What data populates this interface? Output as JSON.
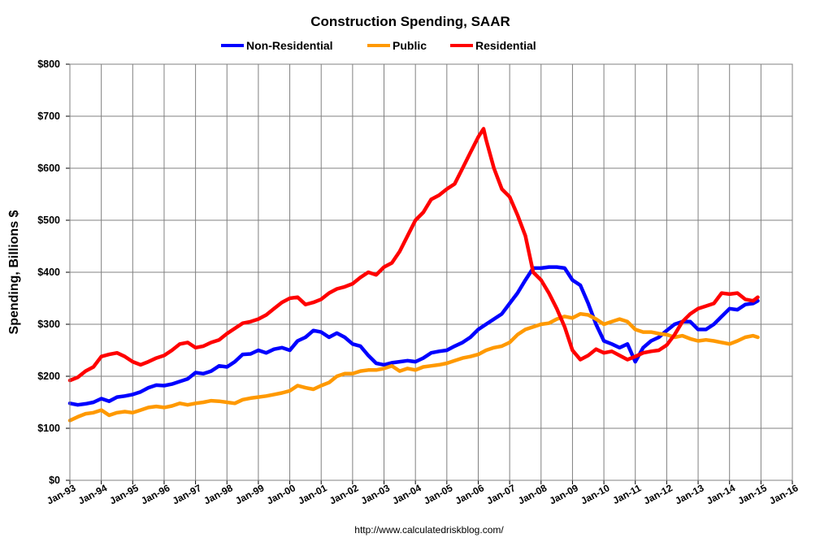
{
  "chart_data": {
    "type": "line",
    "title": "Construction Spending, SAAR",
    "ylabel": "Spending, Billions $",
    "source": "http://www.calculatedriskblog.com/",
    "ylim": [
      0,
      800
    ],
    "xlim": [
      1993,
      2016
    ],
    "grid": true,
    "legend_position": "top-center",
    "yticks": [
      0,
      100,
      200,
      300,
      400,
      500,
      600,
      700,
      800
    ],
    "ytick_labels": [
      "$0",
      "$100",
      "$200",
      "$300",
      "$400",
      "$500",
      "$600",
      "$700",
      "$800"
    ],
    "xticks": [
      1993,
      1994,
      1995,
      1996,
      1997,
      1998,
      1999,
      2000,
      2001,
      2002,
      2003,
      2004,
      2005,
      2006,
      2007,
      2008,
      2009,
      2010,
      2011,
      2012,
      2013,
      2014,
      2015,
      2016
    ],
    "xtick_labels": [
      "Jan-93",
      "Jan-94",
      "Jan-95",
      "Jan-96",
      "Jan-97",
      "Jan-98",
      "Jan-99",
      "Jan-00",
      "Jan-01",
      "Jan-02",
      "Jan-03",
      "Jan-04",
      "Jan-05",
      "Jan-06",
      "Jan-07",
      "Jan-08",
      "Jan-09",
      "Jan-10",
      "Jan-11",
      "Jan-12",
      "Jan-13",
      "Jan-14",
      "Jan-15",
      "Jan-16"
    ],
    "series": [
      {
        "name": "Non-Residential",
        "color": "#0000ff",
        "x": [
          1993.0,
          1993.25,
          1993.5,
          1993.75,
          1994.0,
          1994.25,
          1994.5,
          1994.75,
          1995.0,
          1995.25,
          1995.5,
          1995.75,
          1996.0,
          1996.25,
          1996.5,
          1996.75,
          1997.0,
          1997.25,
          1997.5,
          1997.75,
          1998.0,
          1998.25,
          1998.5,
          1998.75,
          1999.0,
          1999.25,
          1999.5,
          1999.75,
          2000.0,
          2000.25,
          2000.5,
          2000.75,
          2001.0,
          2001.25,
          2001.5,
          2001.75,
          2002.0,
          2002.25,
          2002.5,
          2002.75,
          2003.0,
          2003.25,
          2003.5,
          2003.75,
          2004.0,
          2004.25,
          2004.5,
          2004.75,
          2005.0,
          2005.25,
          2005.5,
          2005.75,
          2006.0,
          2006.25,
          2006.5,
          2006.75,
          2007.0,
          2007.25,
          2007.5,
          2007.75,
          2008.0,
          2008.25,
          2008.5,
          2008.75,
          2009.0,
          2009.25,
          2009.5,
          2009.75,
          2010.0,
          2010.25,
          2010.5,
          2010.75,
          2011.0,
          2011.25,
          2011.5,
          2011.75,
          2012.0,
          2012.25,
          2012.5,
          2012.75,
          2013.0,
          2013.25,
          2013.5,
          2013.75,
          2014.0,
          2014.25,
          2014.5,
          2014.75,
          2014.9
        ],
        "values": [
          148,
          145,
          147,
          150,
          157,
          152,
          160,
          162,
          165,
          170,
          178,
          183,
          182,
          185,
          190,
          195,
          207,
          205,
          210,
          220,
          218,
          228,
          242,
          243,
          250,
          245,
          252,
          255,
          250,
          268,
          275,
          288,
          285,
          275,
          283,
          275,
          262,
          258,
          240,
          225,
          222,
          226,
          228,
          230,
          228,
          235,
          245,
          248,
          250,
          258,
          265,
          275,
          290,
          300,
          310,
          320,
          340,
          360,
          385,
          408,
          408,
          410,
          410,
          408,
          385,
          375,
          340,
          300,
          268,
          262,
          255,
          262,
          228,
          255,
          268,
          275,
          288,
          300,
          305,
          305,
          290,
          290,
          300,
          315,
          330,
          328,
          338,
          340,
          345
        ]
      },
      {
        "name": "Public",
        "color": "#ff9900",
        "x": [
          1993.0,
          1993.25,
          1993.5,
          1993.75,
          1994.0,
          1994.25,
          1994.5,
          1994.75,
          1995.0,
          1995.25,
          1995.5,
          1995.75,
          1996.0,
          1996.25,
          1996.5,
          1996.75,
          1997.0,
          1997.25,
          1997.5,
          1997.75,
          1998.0,
          1998.25,
          1998.5,
          1998.75,
          1999.0,
          1999.25,
          1999.5,
          1999.75,
          2000.0,
          2000.25,
          2000.5,
          2000.75,
          2001.0,
          2001.25,
          2001.5,
          2001.75,
          2002.0,
          2002.25,
          2002.5,
          2002.75,
          2003.0,
          2003.25,
          2003.5,
          2003.75,
          2004.0,
          2004.25,
          2004.5,
          2004.75,
          2005.0,
          2005.25,
          2005.5,
          2005.75,
          2006.0,
          2006.25,
          2006.5,
          2006.75,
          2007.0,
          2007.25,
          2007.5,
          2007.75,
          2008.0,
          2008.25,
          2008.5,
          2008.75,
          2009.0,
          2009.25,
          2009.5,
          2009.75,
          2010.0,
          2010.25,
          2010.5,
          2010.75,
          2011.0,
          2011.25,
          2011.5,
          2011.75,
          2012.0,
          2012.25,
          2012.5,
          2012.75,
          2013.0,
          2013.25,
          2013.5,
          2013.75,
          2014.0,
          2014.25,
          2014.5,
          2014.75,
          2014.9
        ],
        "values": [
          115,
          122,
          128,
          130,
          135,
          125,
          130,
          132,
          130,
          135,
          140,
          142,
          140,
          143,
          148,
          145,
          148,
          150,
          153,
          152,
          150,
          148,
          155,
          158,
          160,
          162,
          165,
          168,
          172,
          182,
          178,
          175,
          182,
          188,
          200,
          205,
          205,
          210,
          212,
          212,
          215,
          220,
          210,
          215,
          212,
          218,
          220,
          222,
          225,
          230,
          235,
          238,
          242,
          250,
          255,
          258,
          265,
          280,
          290,
          295,
          300,
          302,
          310,
          315,
          312,
          320,
          318,
          310,
          300,
          305,
          310,
          305,
          290,
          285,
          285,
          282,
          280,
          275,
          278,
          272,
          268,
          270,
          268,
          265,
          262,
          268,
          275,
          278,
          275
        ]
      },
      {
        "name": "Residential",
        "color": "#ff0000",
        "x": [
          1993.0,
          1993.25,
          1993.5,
          1993.75,
          1994.0,
          1994.25,
          1994.5,
          1994.75,
          1995.0,
          1995.25,
          1995.5,
          1995.75,
          1996.0,
          1996.25,
          1996.5,
          1996.75,
          1997.0,
          1997.25,
          1997.5,
          1997.75,
          1998.0,
          1998.25,
          1998.5,
          1998.75,
          1999.0,
          1999.25,
          1999.5,
          1999.75,
          2000.0,
          2000.25,
          2000.5,
          2000.75,
          2001.0,
          2001.25,
          2001.5,
          2001.75,
          2002.0,
          2002.25,
          2002.5,
          2002.75,
          2003.0,
          2003.25,
          2003.5,
          2003.75,
          2004.0,
          2004.25,
          2004.5,
          2004.75,
          2005.0,
          2005.25,
          2005.5,
          2005.75,
          2006.0,
          2006.17,
          2006.25,
          2006.5,
          2006.75,
          2007.0,
          2007.25,
          2007.5,
          2007.75,
          2008.0,
          2008.25,
          2008.5,
          2008.75,
          2009.0,
          2009.25,
          2009.5,
          2009.75,
          2010.0,
          2010.25,
          2010.5,
          2010.75,
          2011.0,
          2011.25,
          2011.5,
          2011.75,
          2012.0,
          2012.25,
          2012.5,
          2012.75,
          2013.0,
          2013.25,
          2013.5,
          2013.75,
          2014.0,
          2014.25,
          2014.5,
          2014.75,
          2014.9
        ],
        "values": [
          192,
          198,
          210,
          218,
          238,
          242,
          245,
          238,
          228,
          222,
          228,
          235,
          240,
          250,
          262,
          265,
          255,
          258,
          265,
          270,
          282,
          292,
          302,
          305,
          310,
          318,
          330,
          342,
          350,
          352,
          338,
          342,
          348,
          360,
          368,
          372,
          378,
          390,
          400,
          395,
          410,
          418,
          440,
          470,
          500,
          515,
          540,
          548,
          560,
          570,
          600,
          630,
          660,
          676,
          655,
          600,
          560,
          545,
          510,
          470,
          400,
          385,
          360,
          330,
          295,
          250,
          232,
          240,
          252,
          245,
          248,
          240,
          232,
          238,
          245,
          248,
          250,
          260,
          280,
          305,
          320,
          330,
          335,
          340,
          360,
          358,
          360,
          348,
          345,
          352
        ]
      }
    ]
  }
}
